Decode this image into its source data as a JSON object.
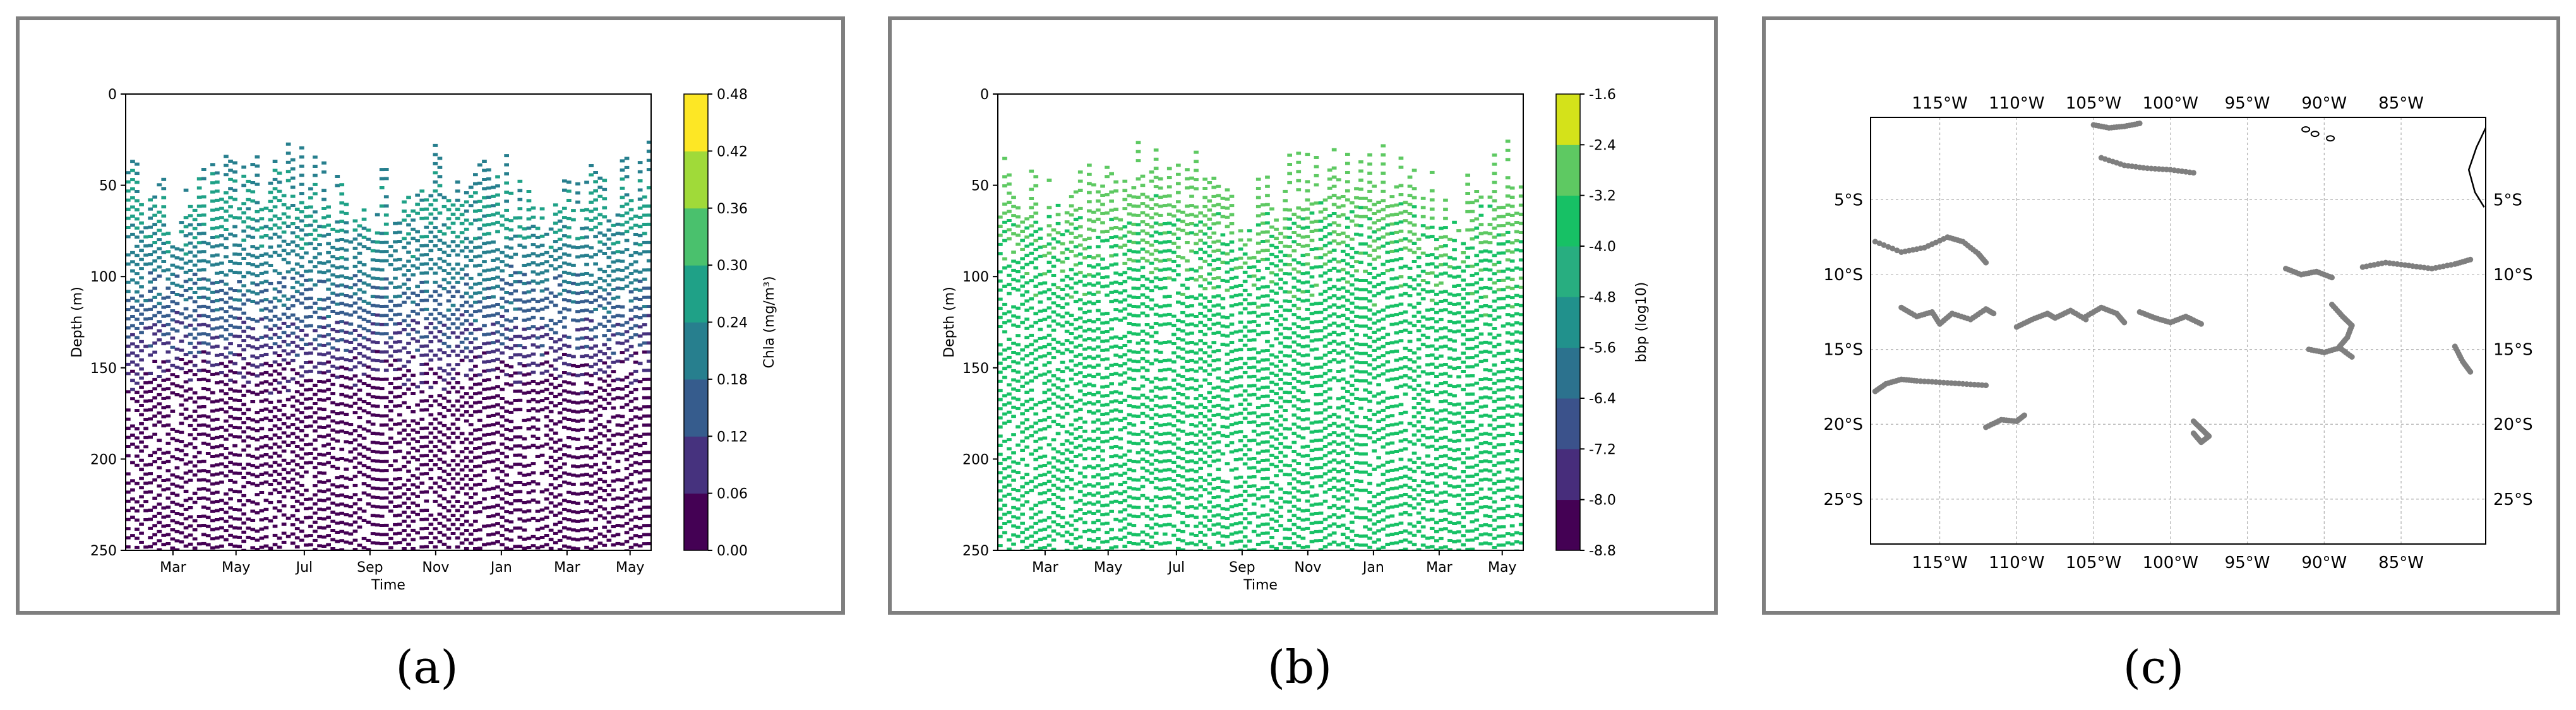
{
  "chart_data": [
    {
      "panel": "(a)",
      "type": "heatmap",
      "xlabel": "Time",
      "ylabel": "Depth (m)",
      "x_ticks": [
        "Mar",
        "May",
        "Jul",
        "Sep",
        "Nov",
        "Jan",
        "Mar",
        "May"
      ],
      "y_ticks": [
        "0",
        "50",
        "100",
        "150",
        "200",
        "250"
      ],
      "ylim": [
        0,
        250
      ],
      "y_inverted": true,
      "colorbar": {
        "label": "Chla (mg/m³)",
        "ticks": [
          "0.00",
          "0.06",
          "0.12",
          "0.18",
          "0.24",
          "0.30",
          "0.36",
          "0.42",
          "0.48"
        ],
        "bounds": [
          0.0,
          0.48
        ],
        "levels": [
          0.0,
          0.06,
          0.12,
          0.18,
          0.24,
          0.3,
          0.36,
          0.42,
          0.48
        ],
        "colors": [
          "#440154",
          "#46327e",
          "#365c8d",
          "#277f8e",
          "#1fa187",
          "#4ac16d",
          "#a0da39",
          "#fde725"
        ]
      },
      "profile": [
        {
          "depth": 40,
          "value": 0.21
        },
        {
          "depth": 60,
          "value": 0.27
        },
        {
          "depth": 80,
          "value": 0.23
        },
        {
          "depth": 100,
          "value": 0.2
        },
        {
          "depth": 120,
          "value": 0.15
        },
        {
          "depth": 140,
          "value": 0.09
        },
        {
          "depth": 160,
          "value": 0.03
        },
        {
          "depth": 250,
          "value": 0.02
        }
      ]
    },
    {
      "panel": "(b)",
      "type": "heatmap",
      "xlabel": "Time",
      "ylabel": "Depth (m)",
      "x_ticks": [
        "Mar",
        "May",
        "Jul",
        "Sep",
        "Nov",
        "Jan",
        "Mar",
        "May"
      ],
      "y_ticks": [
        "0",
        "50",
        "100",
        "150",
        "200",
        "250"
      ],
      "ylim": [
        0,
        250
      ],
      "y_inverted": true,
      "colorbar": {
        "label": "bbp (log10)",
        "ticks": [
          "-1.6",
          "-2.4",
          "-3.2",
          "-4.0",
          "-4.8",
          "-5.6",
          "-6.4",
          "-7.2",
          "-8.0",
          "-8.8"
        ],
        "bounds": [
          -8.8,
          -1.6
        ],
        "levels": [
          -8.8,
          -8.0,
          -7.2,
          -6.4,
          -5.6,
          -4.8,
          -4.0,
          -3.2,
          -2.4,
          -1.6
        ],
        "colors": [
          "#440154",
          "#472d7b",
          "#3b528b",
          "#2c728e",
          "#21918c",
          "#28ae80",
          "#17c165",
          "#5ec962",
          "#d4e21a"
        ]
      },
      "profile": [
        {
          "depth": 40,
          "value": -2.9
        },
        {
          "depth": 80,
          "value": -3.2
        },
        {
          "depth": 150,
          "value": -3.5
        },
        {
          "depth": 250,
          "value": -3.6
        }
      ]
    },
    {
      "panel": "(c)",
      "type": "scatter",
      "x_ticks": [
        "115°W",
        "110°W",
        "105°W",
        "100°W",
        "95°W",
        "90°W",
        "85°W"
      ],
      "y_ticks": [
        "5°S",
        "10°S",
        "15°S",
        "20°S",
        "25°S"
      ],
      "xlim": [
        -119.5,
        -79.5
      ],
      "ylim": [
        -28.0,
        0.5
      ],
      "grid": true,
      "point_color": "#7f7f7f",
      "tracks": [
        {
          "lon": [
            -119.2,
            -117.5,
            -116.0,
            -114.5,
            -113.5,
            -112.5,
            -112.0
          ],
          "lat": [
            -7.8,
            -8.5,
            -8.2,
            -7.5,
            -7.8,
            -8.6,
            -9.2
          ]
        },
        {
          "lon": [
            -119.2,
            -118.5,
            -117.5,
            -116.5,
            -115.0,
            -113.5,
            -112.0
          ],
          "lat": [
            -17.8,
            -17.3,
            -17.0,
            -17.1,
            -17.2,
            -17.3,
            -17.4
          ]
        },
        {
          "lon": [
            -117.5,
            -116.5,
            -115.5,
            -115.0,
            -114.2,
            -113.0,
            -112.0,
            -111.5
          ],
          "lat": [
            -12.2,
            -12.8,
            -12.5,
            -13.3,
            -12.6,
            -13.0,
            -12.3,
            -12.6
          ]
        },
        {
          "lon": [
            -112.0,
            -111.0,
            -110.0,
            -109.5
          ],
          "lat": [
            -20.2,
            -19.7,
            -19.8,
            -19.4
          ]
        },
        {
          "lon": [
            -110.0,
            -109.0,
            -108.0,
            -107.5,
            -106.5,
            -105.5
          ],
          "lat": [
            -13.5,
            -13.0,
            -12.6,
            -12.9,
            -12.4,
            -13.0
          ]
        },
        {
          "lon": [
            -105.5,
            -104.5,
            -103.5,
            -103.0
          ],
          "lat": [
            -12.8,
            -12.2,
            -12.6,
            -13.2
          ]
        },
        {
          "lon": [
            -102.0,
            -101.0,
            -100.0,
            -99.0,
            -98.0
          ],
          "lat": [
            -12.5,
            -12.9,
            -13.2,
            -12.8,
            -13.3
          ]
        },
        {
          "lon": [
            -105.0,
            -104.0,
            -103.0,
            -102.0
          ],
          "lat": [
            0.0,
            -0.2,
            -0.1,
            0.1
          ]
        },
        {
          "lon": [
            -104.5,
            -103.0,
            -101.5,
            -100.0,
            -98.5
          ],
          "lat": [
            -2.2,
            -2.7,
            -2.9,
            -3.0,
            -3.2
          ]
        },
        {
          "lon": [
            -98.5,
            -98.0,
            -97.5,
            -98.0,
            -98.5
          ],
          "lat": [
            -19.8,
            -20.3,
            -20.8,
            -21.2,
            -20.6
          ]
        },
        {
          "lon": [
            -92.5,
            -91.5,
            -90.5,
            -89.5
          ],
          "lat": [
            -9.6,
            -10.0,
            -9.8,
            -10.2
          ]
        },
        {
          "lon": [
            -89.5,
            -88.8,
            -88.2,
            -88.5,
            -89.0
          ],
          "lat": [
            -12.0,
            -12.8,
            -13.4,
            -14.2,
            -14.8
          ]
        },
        {
          "lon": [
            -91.0,
            -90.0,
            -89.0,
            -88.2
          ],
          "lat": [
            -15.0,
            -15.2,
            -14.9,
            -15.5
          ]
        },
        {
          "lon": [
            -87.5,
            -86.0,
            -84.5,
            -83.0,
            -81.5,
            -80.5
          ],
          "lat": [
            -9.5,
            -9.2,
            -9.4,
            -9.6,
            -9.3,
            -9.0
          ]
        },
        {
          "lon": [
            -81.5,
            -81.0,
            -80.5
          ],
          "lat": [
            -14.8,
            -15.8,
            -16.5
          ]
        }
      ]
    }
  ],
  "captions": {
    "a": "(a)",
    "b": "(b)",
    "c": "(c)"
  }
}
